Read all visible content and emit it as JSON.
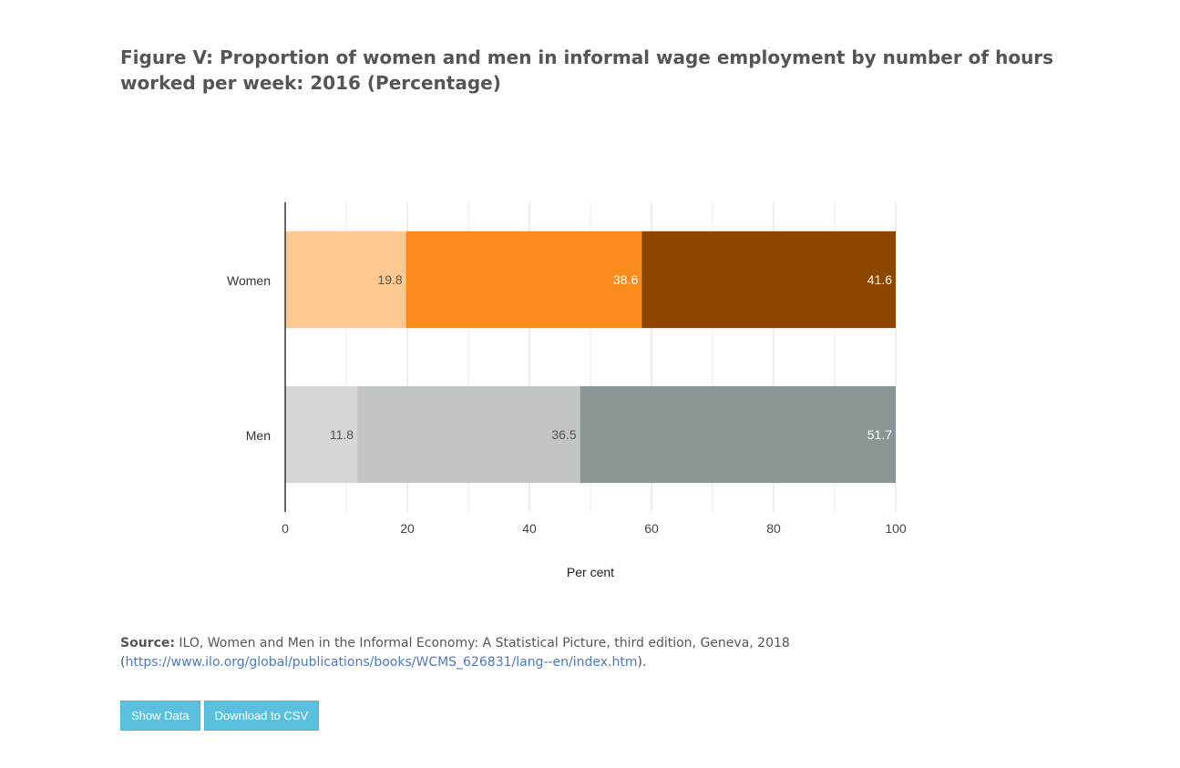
{
  "title": {
    "label": "Figure V:",
    "text": " Proportion of women and men in informal wage employment by number of hours worked per week: 2016 (Percentage)"
  },
  "source": {
    "label": "Source:",
    "text": " ILO, Women and Men in the Informal Economy: A Statistical Picture, third edition, Geneva, 2018",
    "paren_open": "(",
    "link_text": "https://www.ilo.org/global/publications/books/WCMS_626831/lang--en/index.htm",
    "paren_close": ")."
  },
  "buttons": {
    "show_data": "Show Data",
    "download_csv": "Download to CSV"
  },
  "chart_data": {
    "type": "bar",
    "orientation": "horizontal",
    "stacked": true,
    "title": "",
    "xlabel": "Per cent",
    "ylabel": "",
    "xlim": [
      0,
      100
    ],
    "x_ticks": [
      0,
      20,
      40,
      60,
      80,
      100
    ],
    "grid": true,
    "categories": [
      "Women",
      "Men"
    ],
    "segments": [
      {
        "values": [
          19.8,
          38.6,
          41.6
        ],
        "colors": [
          "#fec891",
          "#f98b1c",
          "#8e4601"
        ],
        "label_colors": [
          "#555555",
          "#ffffff",
          "#ffffff"
        ]
      },
      {
        "values": [
          11.8,
          36.5,
          51.7
        ],
        "colors": [
          "#d6d6d6",
          "#c1c5c6",
          "#8c9595"
        ],
        "label_colors": [
          "#555555",
          "#555555",
          "#ffffff"
        ]
      }
    ]
  }
}
